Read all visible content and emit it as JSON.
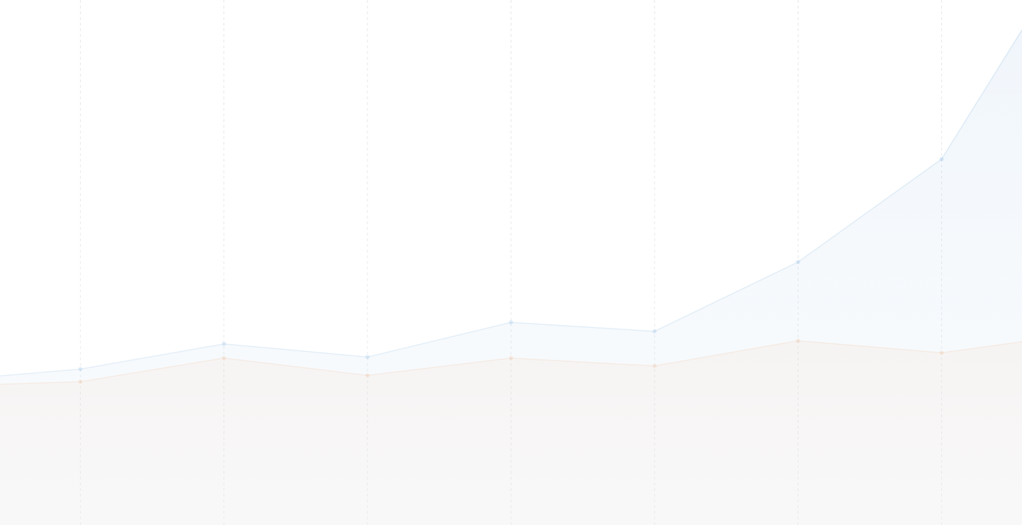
{
  "chart_data": {
    "type": "area",
    "x": [
      0.44,
      1,
      2,
      3,
      4,
      5,
      6,
      7,
      7.56
    ],
    "series": [
      {
        "color": "#5b9bd5",
        "values": [
          28.4,
          29.7,
          34.5,
          32.0,
          38.6,
          36.9,
          50.1,
          69.7,
          94.3
        ]
      },
      {
        "color": "#e8a06a",
        "values": [
          26.8,
          27.3,
          31.8,
          28.5,
          31.8,
          30.3,
          35.1,
          32.8,
          34.9
        ]
      }
    ],
    "xlim": [
      0.44,
      7.56
    ],
    "ylim": [
      0,
      100
    ],
    "xticks": [
      1,
      2,
      3,
      4,
      5,
      6,
      7
    ],
    "grid": true
  }
}
